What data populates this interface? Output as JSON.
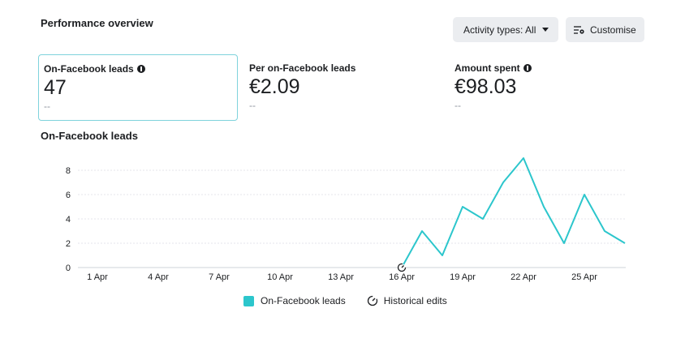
{
  "header": {
    "title": "Performance overview",
    "activity_button": "Activity types: All",
    "customise_button": "Customise"
  },
  "metrics": [
    {
      "label": "On-Facebook leads",
      "value": "47",
      "delta": "--",
      "info": true,
      "selected": true
    },
    {
      "label": "Per on-Facebook leads",
      "value": "€2.09",
      "delta": "--",
      "info": false,
      "selected": false
    },
    {
      "label": "Amount spent",
      "value": "€98.03",
      "delta": "--",
      "info": true,
      "selected": false
    }
  ],
  "chart_title": "On-Facebook leads",
  "legend": {
    "series": "On-Facebook leads",
    "historical": "Historical edits"
  },
  "colors": {
    "series": "#2cc6cc",
    "grid": "#e4e6eb",
    "axis_text": "#1c1e21"
  },
  "chart_data": {
    "type": "line",
    "x_tick_labels": [
      "1 Apr",
      "4 Apr",
      "7 Apr",
      "10 Apr",
      "13 Apr",
      "16 Apr",
      "19 Apr",
      "22 Apr",
      "25 Apr"
    ],
    "y_ticks": [
      0,
      2,
      4,
      6,
      8
    ],
    "ylim": [
      0,
      8
    ],
    "series": [
      {
        "name": "On-Facebook leads",
        "points": [
          {
            "x": "16 Apr",
            "y": 0
          },
          {
            "x": "17 Apr",
            "y": 3
          },
          {
            "x": "18 Apr",
            "y": 1
          },
          {
            "x": "19 Apr",
            "y": 5
          },
          {
            "x": "20 Apr",
            "y": 4
          },
          {
            "x": "21 Apr",
            "y": 7
          },
          {
            "x": "22 Apr",
            "y": 9
          },
          {
            "x": "23 Apr",
            "y": 5
          },
          {
            "x": "24 Apr",
            "y": 2
          },
          {
            "x": "25 Apr",
            "y": 6
          },
          {
            "x": "26 Apr",
            "y": 3
          },
          {
            "x": "27 Apr",
            "y": 2
          }
        ]
      }
    ],
    "annotations": [
      {
        "x": "16 Apr",
        "type": "historical-edit"
      }
    ]
  }
}
